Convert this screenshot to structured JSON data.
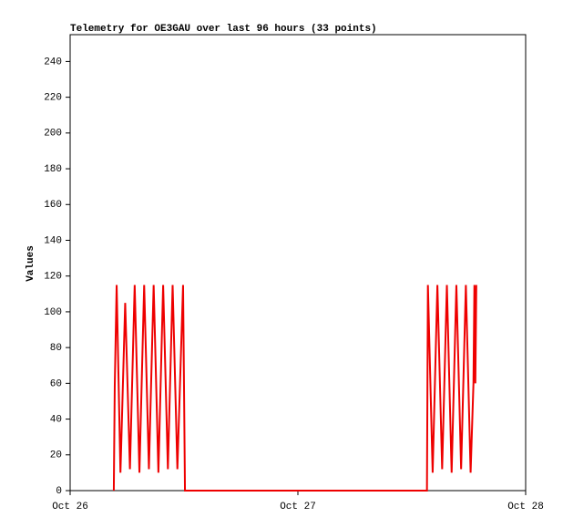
{
  "chart_data": {
    "type": "line",
    "title": "Telemetry for OE3GAU over last 96 hours (33 points)",
    "y_label": "Values",
    "xlim": [
      0,
      48
    ],
    "xticks": [
      {
        "value": 0,
        "label": "Oct 26"
      },
      {
        "value": 24,
        "label": "Oct 27"
      },
      {
        "value": 48,
        "label": "Oct 28"
      }
    ],
    "ylim": [
      0,
      255
    ],
    "yticks": [
      0,
      20,
      40,
      60,
      80,
      100,
      120,
      140,
      160,
      180,
      200,
      220,
      240
    ],
    "series": [
      {
        "color": "#ee0000",
        "x": [
          4.6,
          4.7,
          4.9,
          5.3,
          5.8,
          6.3,
          6.8,
          7.3,
          7.8,
          8.3,
          8.8,
          9.3,
          9.8,
          10.3,
          10.8,
          11.3,
          11.9,
          12.1,
          37.6,
          37.7,
          38.2,
          38.7,
          39.2,
          39.7,
          40.2,
          40.7,
          41.2,
          41.7,
          42.2,
          42.5,
          42.6,
          42.7,
          42.8
        ],
        "values": [
          0,
          58,
          115,
          10,
          105,
          12,
          115,
          10,
          115,
          12,
          115,
          10,
          115,
          12,
          115,
          12,
          115,
          0,
          0,
          115,
          10,
          115,
          12,
          115,
          10,
          115,
          12,
          115,
          10,
          60,
          115,
          60,
          115
        ]
      }
    ]
  }
}
